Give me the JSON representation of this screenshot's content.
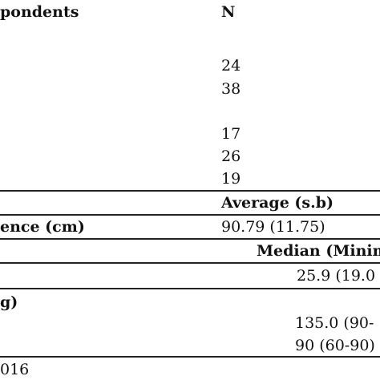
{
  "table": {
    "header": [
      "pondents",
      "N"
    ],
    "counts": [
      "24",
      "38",
      "17",
      "26",
      "19"
    ],
    "average_header": "Average (s.b)",
    "average_row": [
      "ence (cm)",
      "90.79 (11.75)"
    ],
    "median_header": "Median (Minim",
    "median_row_1": "25.9 (19.0",
    "section": "g)",
    "median_rows": [
      "135.0 (90-",
      "90 (60-90)"
    ],
    "footnote": "016"
  }
}
